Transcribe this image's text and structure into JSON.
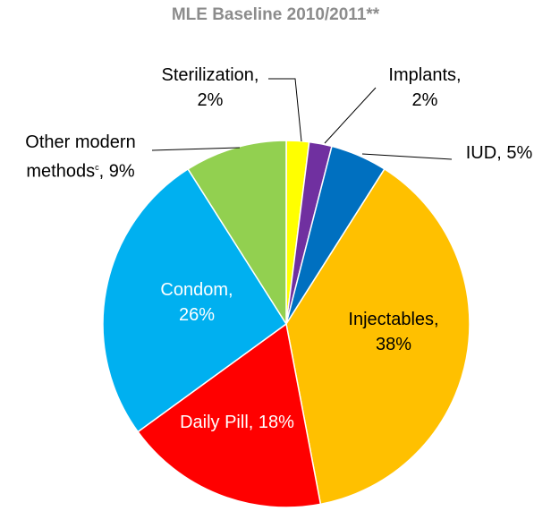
{
  "chart_data": {
    "type": "pie",
    "title": "MLE Baseline 2010/2011**",
    "categories": [
      "Sterilization",
      "Implants",
      "IUD",
      "Injectables",
      "Daily Pill",
      "Condom",
      "Other modern methods"
    ],
    "values": [
      2,
      2,
      5,
      38,
      18,
      26,
      9
    ],
    "value_labels": [
      "2%",
      "2%",
      "5%",
      "38%",
      "18%",
      "26%",
      "9%"
    ],
    "colors": [
      "#ffff00",
      "#7030a0",
      "#0070c0",
      "#ffc000",
      "#ff0000",
      "#00b0f0",
      "#92d050"
    ],
    "label_separator": ",",
    "category_notes": [
      {
        "index": 6,
        "note": "c"
      }
    ]
  }
}
